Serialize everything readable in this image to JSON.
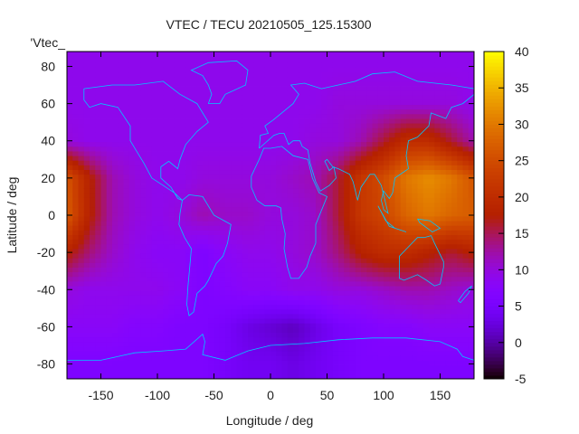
{
  "chart_data": {
    "type": "heatmap",
    "title": "VTEC / TECU 20210505_125.15300",
    "xlabel": "Longitude / deg",
    "ylabel": "Latitude / deg",
    "key_label": "'Vtec_",
    "xlim": [
      -180,
      180
    ],
    "ylim": [
      -88,
      88
    ],
    "xticks": [
      -150,
      -100,
      -50,
      0,
      50,
      100,
      150
    ],
    "yticks": [
      -80,
      -60,
      -40,
      -20,
      0,
      20,
      40,
      60,
      80
    ],
    "cbrange": [
      -5,
      40
    ],
    "cbticks": [
      -5,
      0,
      5,
      10,
      15,
      20,
      25,
      30,
      35,
      40
    ],
    "grid_lon": [
      -180,
      -160,
      -140,
      -120,
      -100,
      -80,
      -60,
      -40,
      -20,
      0,
      20,
      40,
      60,
      80,
      100,
      120,
      140,
      160,
      180
    ],
    "grid_lat": [
      80,
      60,
      40,
      20,
      0,
      -20,
      -40,
      -60,
      -80
    ],
    "values": [
      [
        9,
        9,
        9,
        9,
        9,
        9,
        9,
        9,
        9,
        9,
        9,
        9,
        9,
        9,
        9,
        9,
        9,
        9,
        9
      ],
      [
        9,
        9,
        9,
        9,
        9,
        9,
        9,
        9,
        9,
        9,
        9,
        9,
        10,
        10,
        10,
        10,
        10,
        10,
        9
      ],
      [
        10,
        9,
        9,
        9,
        9,
        9,
        9,
        9,
        9,
        9,
        9,
        10,
        10,
        12,
        16,
        20,
        20,
        16,
        12
      ],
      [
        26,
        18,
        12,
        10,
        9,
        9,
        10,
        10,
        10,
        10,
        11,
        12,
        16,
        22,
        25,
        30,
        32,
        30,
        26
      ],
      [
        27,
        18,
        12,
        10,
        9,
        10,
        12,
        11,
        11,
        10,
        10,
        11,
        16,
        22,
        24,
        28,
        30,
        28,
        27
      ],
      [
        18,
        14,
        11,
        9,
        8,
        8,
        6,
        8,
        9,
        9,
        10,
        11,
        14,
        18,
        20,
        20,
        18,
        16,
        18
      ],
      [
        10,
        9,
        9,
        9,
        9,
        8,
        6,
        7,
        8,
        8,
        9,
        9,
        10,
        10,
        11,
        12,
        12,
        11,
        10
      ],
      [
        8,
        8,
        8,
        7,
        7,
        6,
        6,
        5,
        3,
        2,
        1,
        3,
        5,
        6,
        7,
        7,
        8,
        8,
        8
      ],
      [
        6,
        6,
        6,
        6,
        6,
        6,
        6,
        5,
        4,
        4,
        3,
        4,
        5,
        6,
        6,
        6,
        6,
        6,
        6
      ]
    ]
  }
}
